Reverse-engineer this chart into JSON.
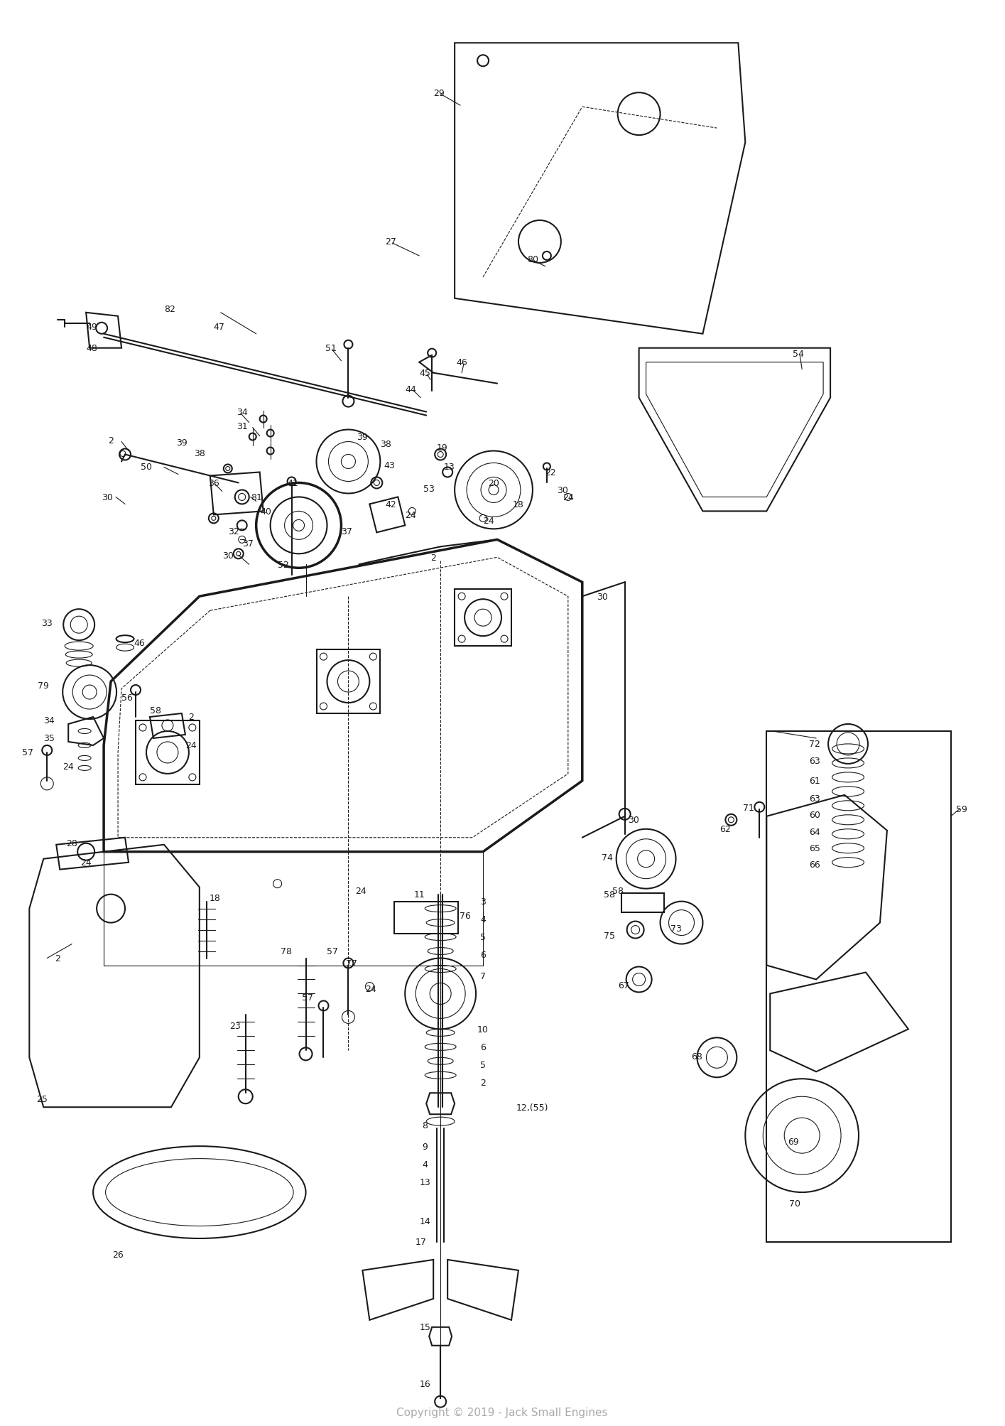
{
  "background_color": "#ffffff",
  "copyright_text": "Copyright © 2019 - Jack Small Engines",
  "copyright_color": "#aaaaaa",
  "copyright_fontsize": 11,
  "fig_width": 14.15,
  "fig_height": 20.08,
  "dpi": 100,
  "line_color": "#1a1a1a",
  "label_color": "#1a1a1a",
  "label_fontsize": 9
}
